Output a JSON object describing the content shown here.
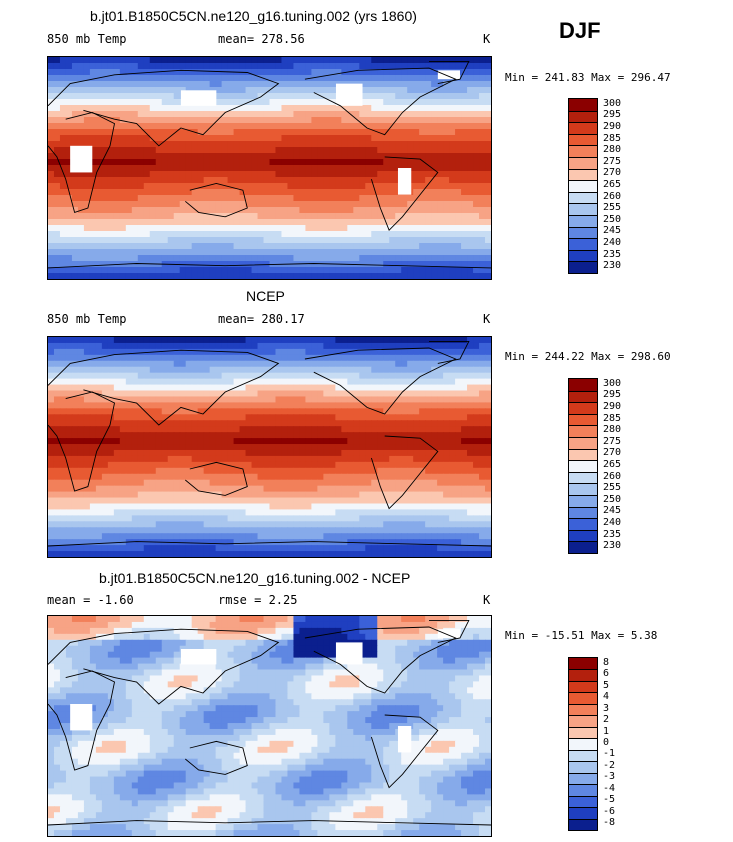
{
  "season": "DJF",
  "panels": [
    {
      "title": "b.jt01.B1850C5CN.ne120_g16.tuning.002 (yrs 1860)",
      "left_text": "850 mb Temp",
      "center_text": "mean= 278.56",
      "units": "K",
      "minmax": "Min = 241.83 Max = 296.47",
      "levels": [
        "300",
        "295",
        "290",
        "285",
        "280",
        "275",
        "270",
        "265",
        "260",
        "255",
        "250",
        "245",
        "240",
        "235",
        "230"
      ],
      "colors": [
        "#8b0000",
        "#b3200d",
        "#d33a1b",
        "#e85a32",
        "#f2805a",
        "#f7a385",
        "#fbc7b0",
        "#f2f6fb",
        "#c7dcf3",
        "#a9c6ee",
        "#86aaea",
        "#5f87e2",
        "#3b61d8",
        "#1f3fc0",
        "#0b1f8e"
      ],
      "field_type": "temp",
      "missing": true
    },
    {
      "title": "NCEP",
      "left_text": "850 mb Temp",
      "center_text": "mean= 280.17",
      "units": "K",
      "minmax": "Min = 244.22 Max = 298.60",
      "levels": [
        "300",
        "295",
        "290",
        "285",
        "280",
        "275",
        "270",
        "265",
        "260",
        "255",
        "250",
        "245",
        "240",
        "235",
        "230"
      ],
      "colors": [
        "#8b0000",
        "#b3200d",
        "#d33a1b",
        "#e85a32",
        "#f2805a",
        "#f7a385",
        "#fbc7b0",
        "#f2f6fb",
        "#c7dcf3",
        "#a9c6ee",
        "#86aaea",
        "#5f87e2",
        "#3b61d8",
        "#1f3fc0",
        "#0b1f8e"
      ],
      "field_type": "temp",
      "missing": false
    },
    {
      "title": "b.jt01.B1850C5CN.ne120_g16.tuning.002 - NCEP",
      "left_text": "mean =   -1.60",
      "center_text": "rmse =    2.25",
      "units": "K",
      "minmax": "Min = -15.51 Max =   5.38",
      "levels": [
        "8",
        "6",
        "5",
        "4",
        "3",
        "2",
        "1",
        "0",
        "-1",
        "-2",
        "-3",
        "-4",
        "-5",
        "-6",
        "-8"
      ],
      "colors": [
        "#8b0000",
        "#b3200d",
        "#d33a1b",
        "#e85a32",
        "#f2805a",
        "#f7a385",
        "#fbc7b0",
        "#f2f6fb",
        "#c7dcf3",
        "#a9c6ee",
        "#86aaea",
        "#5f87e2",
        "#3b61d8",
        "#1f3fc0",
        "#0b1f8e"
      ],
      "field_type": "diff",
      "missing": true
    }
  ]
}
